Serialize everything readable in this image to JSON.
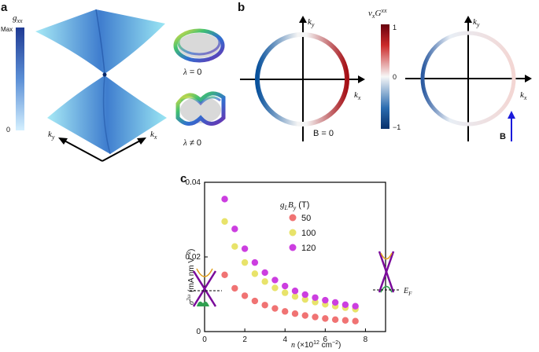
{
  "panels": {
    "a": {
      "label": "a",
      "colorbar": {
        "title": "g",
        "title_sub": "xx",
        "max_label": "Max",
        "min_label": "0",
        "color_low": "#cfeeff",
        "color_high": "#1f3a93"
      },
      "axes": {
        "ky": "k",
        "ky_sub": "y",
        "kx": "k",
        "kx_sub": "x"
      },
      "insets": [
        {
          "lam": "λ",
          "text": " = 0"
        },
        {
          "lam": "λ",
          "text": " ≠ 0"
        }
      ]
    },
    "b": {
      "label": "b",
      "colorbar": {
        "title_v": "v",
        "title_vsub": "x",
        "title_g": "G",
        "title_gsup": "xx",
        "ticks": [
          "1",
          "0",
          "−1"
        ],
        "color_pos": "#a50f15",
        "color_neg": "#08519c"
      },
      "left": {
        "ky": "k",
        "ky_sub": "y",
        "kx": "k",
        "kx_sub": "x",
        "field": "B = 0"
      },
      "right": {
        "ky": "k",
        "ky_sub": "y",
        "kx": "k",
        "kx_sub": "x",
        "field_label": "B",
        "arrow_color": "#1a1adb"
      }
    },
    "c": {
      "label": "c",
      "inset_right_label": "E",
      "inset_right_sub": "F"
    }
  },
  "chart_data": {
    "type": "scatter",
    "xlabel": "n (×10¹² cm⁻²)",
    "ylabel": "σ²ω (mA nm V⁻²)",
    "xlim": [
      0,
      9
    ],
    "ylim": [
      0,
      0.04
    ],
    "x_ticks": [
      "0",
      "2",
      "4",
      "6",
      "8"
    ],
    "y_ticks": [
      "0",
      "0.02",
      "0.04"
    ],
    "legend_title": "gLBy (T)",
    "legend_placement": "top-center",
    "grid": false,
    "x": [
      1.0,
      1.5,
      2.0,
      2.5,
      3.0,
      3.5,
      4.0,
      4.5,
      5.0,
      5.5,
      6.0,
      6.5,
      7.0,
      7.5
    ],
    "series": [
      {
        "name": "50",
        "color": "#f07373",
        "values": [
          0.0152,
          0.0116,
          0.0096,
          0.0082,
          0.0071,
          0.0062,
          0.0054,
          0.0048,
          0.0043,
          0.0039,
          0.0035,
          0.0032,
          0.003,
          0.0028
        ]
      },
      {
        "name": "100",
        "color": "#e8e36a",
        "values": [
          0.0295,
          0.0228,
          0.0185,
          0.0155,
          0.0134,
          0.0117,
          0.0104,
          0.0094,
          0.0086,
          0.0079,
          0.0073,
          0.0068,
          0.0064,
          0.006
        ]
      },
      {
        "name": "120",
        "color": "#cc3ee0",
        "values": [
          0.0355,
          0.0275,
          0.0222,
          0.0185,
          0.0158,
          0.0138,
          0.0122,
          0.0109,
          0.0099,
          0.0091,
          0.0084,
          0.0078,
          0.0072,
          0.0068
        ]
      }
    ]
  }
}
